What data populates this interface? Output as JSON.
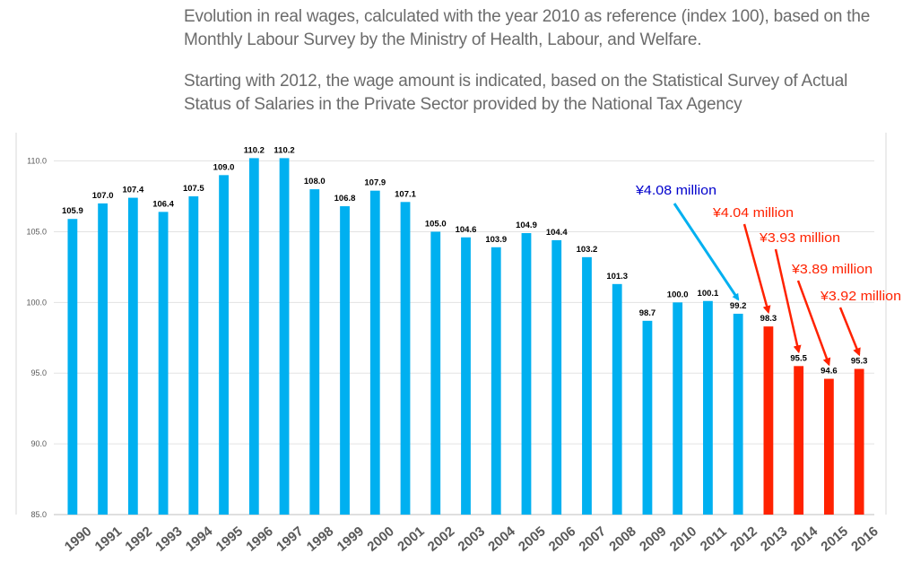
{
  "captions": {
    "line1": "Evolution in real wages, calculated with the year 2010 as reference (index 100), based on the Monthly Labour Survey by the Ministry of Health, Labour, and Welfare.",
    "line2": "Starting with 2012, the wage amount is indicated, based on the Statistical Survey of Actual Status of Salaries in the Private Sector provided by the National Tax Agency"
  },
  "chart_data": {
    "type": "bar",
    "categories": [
      "1990",
      "1991",
      "1992",
      "1993",
      "1994",
      "1995",
      "1996",
      "1997",
      "1998",
      "1999",
      "2000",
      "2001",
      "2002",
      "2003",
      "2004",
      "2005",
      "2006",
      "2007",
      "2008",
      "2009",
      "2010",
      "2011",
      "2012",
      "2013",
      "2014",
      "2015",
      "2016"
    ],
    "values": [
      105.9,
      107.0,
      107.4,
      106.4,
      107.5,
      109.0,
      110.2,
      110.2,
      108.0,
      106.8,
      107.9,
      107.1,
      105.0,
      104.6,
      103.9,
      104.9,
      104.4,
      103.2,
      101.3,
      98.7,
      100.0,
      100.1,
      99.2,
      98.3,
      95.5,
      94.6,
      95.3
    ],
    "value_labels": [
      "105.9",
      "107.0",
      "107.4",
      "106.4",
      "107.5",
      "109.0",
      "110.2",
      "110.2",
      "108.0",
      "106.8",
      "107.9",
      "107.1",
      "105.0",
      "104.6",
      "103.9",
      "104.9",
      "104.4",
      "103.2",
      "101.3",
      "98.7",
      "100.0",
      "100.1",
      "99.2",
      "98.3",
      "95.5",
      "94.6",
      "95.3"
    ],
    "ylim": [
      85,
      112
    ],
    "yticks": [
      85,
      90,
      95,
      100,
      105,
      110
    ],
    "ytick_labels": [
      "85.0",
      "90.0",
      "95.0",
      "100.0",
      "105.0",
      "110.0"
    ],
    "grid": true,
    "colors": {
      "default": "#00b0f0",
      "highlight": "#ff2200"
    },
    "highlighted_categories": [
      "2013",
      "2014",
      "2015",
      "2016"
    ],
    "annotations": [
      {
        "text": "¥4.08 million",
        "target": "2012",
        "color": "#0000cc",
        "arrow_color": "#00b0f0"
      },
      {
        "text": "¥4.04 million",
        "target": "2013",
        "color": "#ff2200",
        "arrow_color": "#ff2200"
      },
      {
        "text": "¥3.93 million",
        "target": "2014",
        "color": "#ff2200",
        "arrow_color": "#ff2200"
      },
      {
        "text": "¥3.89 million",
        "target": "2015",
        "color": "#ff2200",
        "arrow_color": "#ff2200"
      },
      {
        "text": "¥3.92 million",
        "target": "2016",
        "color": "#ff2200",
        "arrow_color": "#ff2200"
      }
    ]
  }
}
